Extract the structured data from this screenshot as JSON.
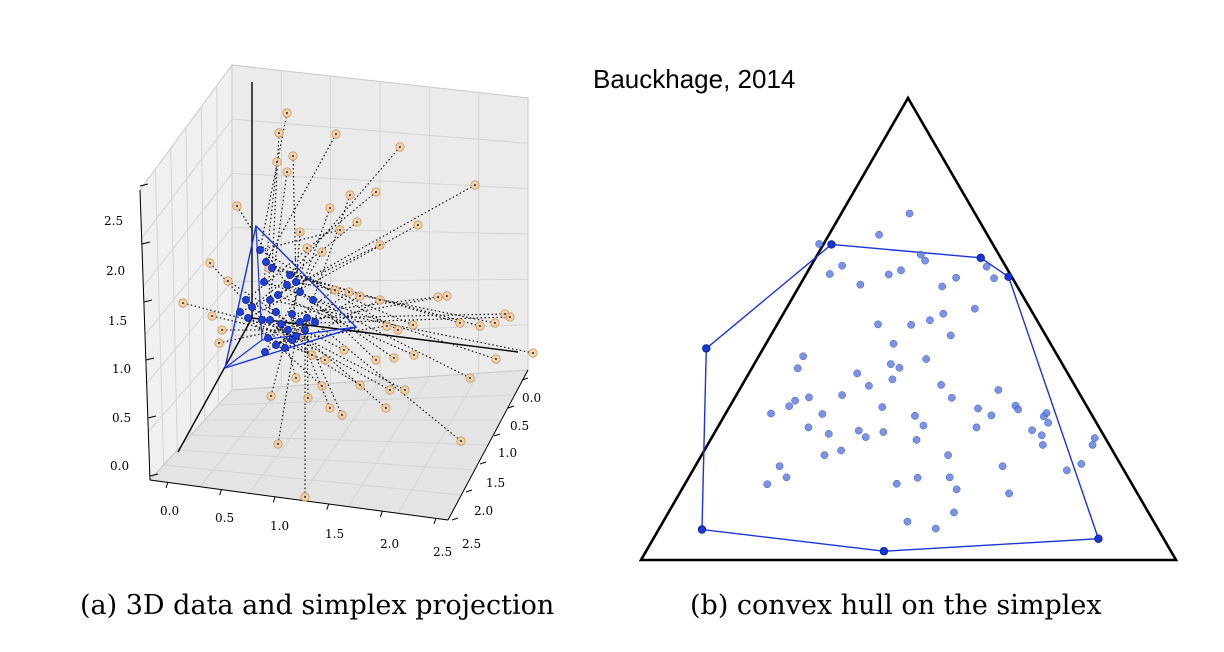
{
  "credit": "Bauckhage, 2014",
  "panel_a": {
    "caption": "(a) 3D data and simplex projection",
    "z_ticks": [
      "0.0",
      "0.5",
      "1.0",
      "1.5",
      "2.0",
      "2.5"
    ],
    "x_ticks": [
      "0.0",
      "0.5",
      "1.0",
      "1.5",
      "2.0",
      "2.5"
    ],
    "y_ticks": [
      "0.0",
      "0.5",
      "1.0",
      "1.5",
      "2.0",
      "2.5"
    ]
  },
  "panel_b": {
    "caption": "(b) convex hull on the simplex"
  },
  "chart_data": [
    {
      "type": "scatter",
      "title": "",
      "dimensions": 3,
      "xlim": [
        0,
        2.5
      ],
      "ylim": [
        0,
        2.5
      ],
      "zlim": [
        0,
        2.5
      ],
      "grid": true,
      "series": [
        {
          "role": "data points",
          "color": "#f5c99a",
          "count": 80
        },
        {
          "role": "simplex projections",
          "color": "#1f3fd6",
          "count": 80
        }
      ]
    },
    {
      "type": "scatter",
      "title": "",
      "frame": "simplex triangle",
      "points_color": "#5a78e0",
      "hull_color": "#1a35d8",
      "points": [
        [
          0.333,
          0.316
        ],
        [
          0.445,
          0.296
        ],
        [
          0.502,
          0.25
        ],
        [
          0.523,
          0.339
        ],
        [
          0.531,
          0.352
        ],
        [
          0.486,
          0.373
        ],
        [
          0.463,
          0.382
        ],
        [
          0.41,
          0.404
        ],
        [
          0.376,
          0.363
        ],
        [
          0.353,
          0.381
        ],
        [
          0.563,
          0.408
        ],
        [
          0.589,
          0.389
        ],
        [
          0.66,
          0.39
        ],
        [
          0.646,
          0.365
        ],
        [
          0.624,
          0.456
        ],
        [
          0.565,
          0.467
        ],
        [
          0.54,
          0.481
        ],
        [
          0.579,
          0.514
        ],
        [
          0.533,
          0.565
        ],
        [
          0.483,
          0.584
        ],
        [
          0.467,
          0.576
        ],
        [
          0.472,
          0.532
        ],
        [
          0.443,
          0.49
        ],
        [
          0.505,
          0.491
        ],
        [
          0.404,
          0.596
        ],
        [
          0.293,
          0.585
        ],
        [
          0.303,
          0.559
        ],
        [
          0.314,
          0.648
        ],
        [
          0.277,
          0.667
        ],
        [
          0.339,
          0.684
        ],
        [
          0.376,
          0.643
        ],
        [
          0.426,
          0.623
        ],
        [
          0.451,
          0.669
        ],
        [
          0.515,
          0.74
        ],
        [
          0.574,
          0.773
        ],
        [
          0.63,
          0.672
        ],
        [
          0.655,
          0.687
        ],
        [
          0.7,
          0.666
        ],
        [
          0.753,
          0.689
        ],
        [
          0.749,
          0.73
        ],
        [
          0.751,
          0.751
        ],
        [
          0.676,
          0.797
        ],
        [
          0.577,
          0.821
        ],
        [
          0.59,
          0.847
        ],
        [
          0.517,
          0.822
        ],
        [
          0.528,
          0.709
        ],
        [
          0.512,
          0.688
        ],
        [
          0.453,
          0.723
        ],
        [
          0.42,
          0.734
        ],
        [
          0.351,
          0.727
        ],
        [
          0.313,
          0.713
        ],
        [
          0.288,
          0.655
        ],
        [
          0.243,
          0.683
        ],
        [
          0.259,
          0.797
        ],
        [
          0.272,
          0.821
        ],
        [
          0.236,
          0.836
        ],
        [
          0.343,
          0.773
        ],
        [
          0.374,
          0.763
        ],
        [
          0.407,
          0.72
        ],
        [
          0.478,
          0.835
        ],
        [
          0.498,
          0.917
        ],
        [
          0.551,
          0.932
        ],
        [
          0.585,
          0.897
        ],
        [
          0.688,
          0.856
        ],
        [
          0.796,
          0.806
        ],
        [
          0.823,
          0.792
        ],
        [
          0.844,
          0.751
        ],
        [
          0.848,
          0.736
        ],
        [
          0.731,
          0.719
        ],
        [
          0.627,
          0.713
        ],
        [
          0.668,
          0.632
        ],
        [
          0.758,
          0.682
        ],
        [
          0.761,
          0.703
        ],
        [
          0.705,
          0.674
        ],
        [
          0.581,
          0.649
        ],
        [
          0.561,
          0.621
        ],
        [
          0.47,
          0.609
        ]
      ],
      "hull": [
        [
          0.356,
          0.317
        ],
        [
          0.635,
          0.346
        ],
        [
          0.687,
          0.387
        ],
        [
          0.855,
          0.954
        ],
        [
          0.454,
          0.981
        ],
        [
          0.114,
          0.934
        ],
        [
          0.122,
          0.542
        ]
      ]
    }
  ]
}
